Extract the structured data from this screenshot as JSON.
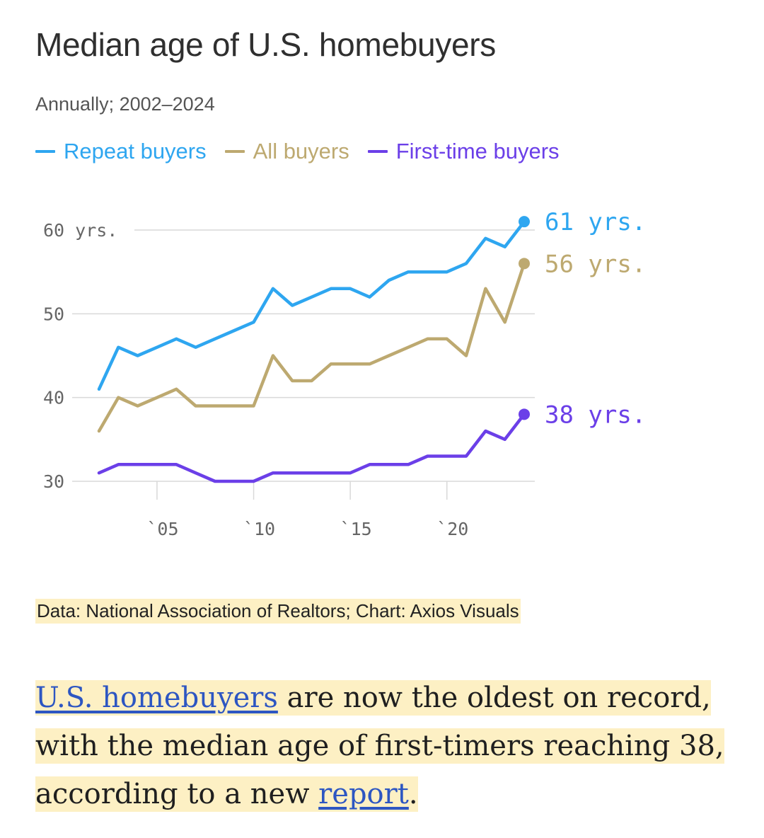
{
  "header": {
    "title": "Median age of U.S. homebuyers",
    "subtitle": "Annually; 2002–2024"
  },
  "colors": {
    "repeat": "#2ea6f0",
    "all": "#bda970",
    "first": "#6b3fe8",
    "grid": "#d9d9d9",
    "axis_text": "#666666",
    "highlight": "#fdf0c4",
    "link": "#2d56c2"
  },
  "chart_data": {
    "type": "line",
    "x": [
      2002,
      2003,
      2004,
      2005,
      2006,
      2007,
      2008,
      2009,
      2010,
      2011,
      2012,
      2013,
      2014,
      2015,
      2016,
      2017,
      2018,
      2019,
      2020,
      2021,
      2022,
      2023,
      2024
    ],
    "series": [
      {
        "name": "Repeat buyers",
        "color": "#2ea6f0",
        "end_label": "61 yrs.",
        "values": [
          41,
          46,
          45,
          46,
          47,
          46,
          47,
          48,
          49,
          53,
          51,
          52,
          53,
          53,
          52,
          54,
          55,
          55,
          55,
          56,
          59,
          58,
          61
        ]
      },
      {
        "name": "All buyers",
        "color": "#bda970",
        "end_label": "56 yrs.",
        "values": [
          36,
          40,
          39,
          40,
          41,
          39,
          39,
          39,
          39,
          45,
          42,
          42,
          44,
          44,
          44,
          45,
          46,
          47,
          47,
          45,
          53,
          49,
          56
        ]
      },
      {
        "name": "First-time buyers",
        "color": "#6b3fe8",
        "end_label": "38 yrs.",
        "values": [
          31,
          32,
          32,
          32,
          32,
          31,
          30,
          30,
          30,
          31,
          31,
          31,
          31,
          31,
          32,
          32,
          32,
          33,
          33,
          33,
          36,
          35,
          38
        ]
      }
    ],
    "y_ticks": [
      {
        "value": 30,
        "label": "30"
      },
      {
        "value": 40,
        "label": "40"
      },
      {
        "value": 50,
        "label": "50"
      },
      {
        "value": 60,
        "label": "60 yrs."
      }
    ],
    "x_ticks": [
      {
        "value": 2005,
        "label": "`05"
      },
      {
        "value": 2010,
        "label": "`10"
      },
      {
        "value": 2015,
        "label": "`15"
      },
      {
        "value": 2020,
        "label": "`20"
      }
    ],
    "ylim": [
      25,
      63
    ],
    "xlim": [
      2002,
      2024
    ],
    "grid": "horizontal",
    "legend": "top-left"
  },
  "source": "Data: National Association of Realtors; Chart: Axios Visuals",
  "article": {
    "link1": "U.S. homebuyers",
    "text1": " are now the oldest on record, with the median age of first-timers reaching 38, according to a new ",
    "link2": "report",
    "text2": "."
  }
}
